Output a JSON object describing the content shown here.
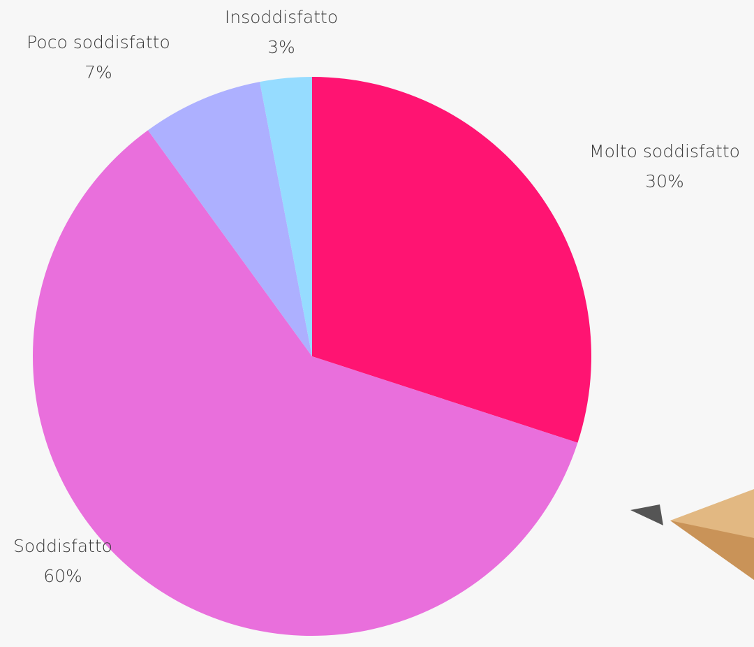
{
  "chart_data": {
    "type": "pie",
    "categories": [
      "Molto soddisfatto",
      "Soddisfatto",
      "Poco soddisfatto",
      "Insoddisfatto"
    ],
    "values": [
      30,
      60,
      7,
      3
    ],
    "value_labels": [
      "30%",
      "60%",
      "7%",
      "3%"
    ],
    "colors": [
      "#ff1472",
      "#e96fdc",
      "#adb0ff",
      "#96dcff"
    ]
  }
}
